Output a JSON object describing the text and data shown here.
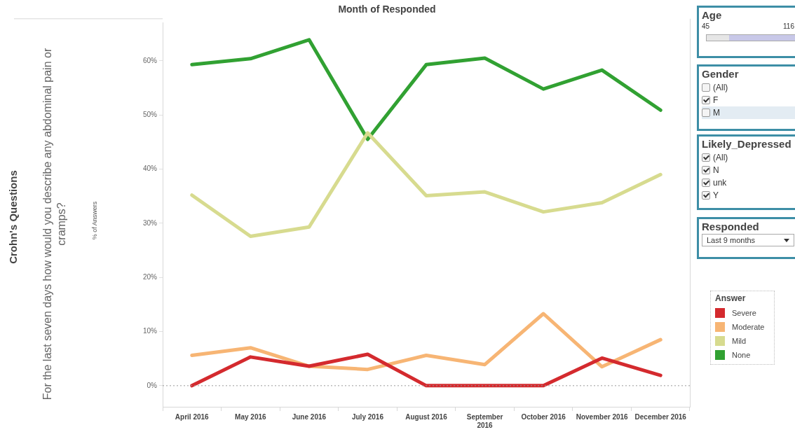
{
  "chart_data": {
    "type": "line",
    "title": "Month of Responded",
    "legend_title": "Answer",
    "legend": "right",
    "grid": false,
    "marker": "none",
    "line_style": "solid",
    "categories": [
      "April 2016",
      "May 2016",
      "June 2016",
      "July 2016",
      "August 2016",
      "September 2016",
      "October 2016",
      "November 2016",
      "December 2016"
    ],
    "ylim": [
      -3.9,
      67
    ],
    "yticks": [
      {
        "value": 0,
        "label": "0%"
      },
      {
        "value": 10,
        "label": "10%"
      },
      {
        "value": 20,
        "label": "20%"
      },
      {
        "value": 30,
        "label": "30%"
      },
      {
        "value": 40,
        "label": "40%"
      },
      {
        "value": 50,
        "label": "50%"
      },
      {
        "value": 60,
        "label": "60%"
      }
    ],
    "ref_lines": [
      {
        "axis": "y",
        "value": 0,
        "color": "#999999",
        "line_style": "dotted"
      }
    ],
    "series": [
      {
        "name": "Severe",
        "color": "#d42a2e",
        "values": [
          0,
          5.3,
          3.6,
          5.8,
          0,
          0,
          0,
          5.1,
          1.9
        ]
      },
      {
        "name": "Moderate",
        "color": "#f7b574",
        "values": [
          5.6,
          7.0,
          3.6,
          3.0,
          5.6,
          3.9,
          13.3,
          3.5,
          8.5
        ]
      },
      {
        "name": "Mild",
        "color": "#d7db8f",
        "values": [
          35.2,
          27.6,
          29.3,
          46.7,
          35.1,
          35.8,
          32.1,
          33.8,
          39.0
        ]
      },
      {
        "name": "None",
        "color": "#31a132",
        "values": [
          59.3,
          60.4,
          63.9,
          45.5,
          59.3,
          60.5,
          54.8,
          58.3,
          50.9
        ]
      }
    ],
    "annotations": [
      "Crohn's Questions",
      "For the last seven days how would you describe any abdominal pain or cramps?",
      "Age",
      "45",
      "116",
      "Gender",
      "(All)",
      "F",
      "M",
      "Likely_Depressed",
      "(All)",
      "N",
      "unk",
      "Y",
      "Responded",
      "Last 9 months",
      "% of Answers"
    ]
  }
}
